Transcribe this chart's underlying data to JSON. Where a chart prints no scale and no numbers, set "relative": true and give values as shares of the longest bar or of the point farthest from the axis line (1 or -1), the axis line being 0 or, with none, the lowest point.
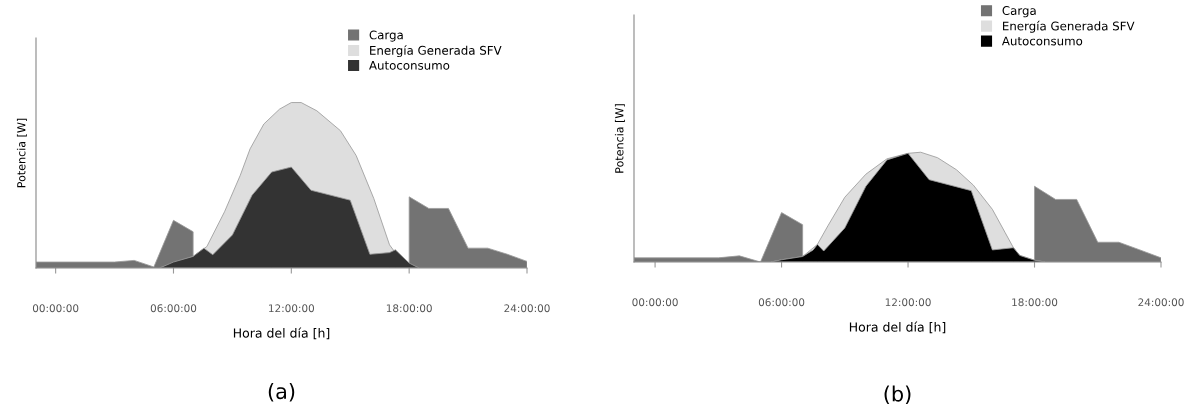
{
  "chart_data": [
    {
      "type": "area",
      "relative": true,
      "xlabel": "Hora del día [h]",
      "ylabel": "Potencia [W]",
      "annotations": [
        "(a)"
      ],
      "legend": "top right",
      "grid": false,
      "tick_labels": "x",
      "xlim": [
        -1,
        24
      ],
      "xticks": [
        {
          "value": 0,
          "label": "00:00:00"
        },
        {
          "value": 6,
          "label": "06:00:00"
        },
        {
          "value": 12,
          "label": "12:00:00"
        },
        {
          "value": 18,
          "label": "18:00:00"
        },
        {
          "value": 24,
          "label": "24:00:00"
        }
      ],
      "series": [
        {
          "name": "Carga",
          "color": "#737373",
          "x": [
            -1,
            3,
            4,
            5,
            6,
            7,
            8,
            9,
            10,
            11,
            12,
            13,
            15,
            16,
            17,
            18,
            19,
            20,
            21,
            22,
            23,
            24
          ],
          "values": [
            0.036,
            0.036,
            0.046,
            0.006,
            0.288,
            0.219,
            null,
            null,
            null,
            null,
            null,
            null,
            null,
            null,
            null,
            0.43,
            0.36,
            0.36,
            0.12,
            0.12,
            0.083,
            0.04
          ]
        },
        {
          "name": "Energía Generada SFV",
          "color": "#dedede",
          "x": [
            5.3,
            6,
            7,
            7.7,
            8.6,
            9.4,
            9.9,
            10.6,
            11.4,
            12,
            12.5,
            13.3,
            14.5,
            15.3,
            16.2,
            17,
            17.5,
            18,
            18.5
          ],
          "values": [
            0,
            0.03,
            0.07,
            0.13,
            0.34,
            0.56,
            0.72,
            0.87,
            0.96,
            1.0,
            1.0,
            0.95,
            0.83,
            0.68,
            0.42,
            0.14,
            0.06,
            0.024,
            0
          ]
        },
        {
          "name": "Autoconsumo",
          "color": "#333333",
          "x": [
            5.3,
            6,
            7,
            7.55,
            8,
            9,
            10,
            11,
            12,
            13,
            15,
            16,
            17,
            17.3,
            18,
            18.5
          ],
          "values": [
            0,
            0.036,
            0.07,
            0.12,
            0.08,
            0.2,
            0.44,
            0.58,
            0.61,
            0.47,
            0.41,
            0.083,
            0.093,
            0.11,
            0.03,
            0
          ]
        }
      ]
    },
    {
      "type": "area",
      "relative": true,
      "xlabel": "Hora del día [h]",
      "ylabel": "Potencia [W]",
      "annotations": [
        "(b)"
      ],
      "legend": "top right",
      "grid": false,
      "tick_labels": "x",
      "xlim": [
        -1,
        24
      ],
      "xticks": [
        {
          "value": 0,
          "label": "00:00:00"
        },
        {
          "value": 6,
          "label": "06:00:00"
        },
        {
          "value": 12,
          "label": "12:00:00"
        },
        {
          "value": 18,
          "label": "18:00:00"
        },
        {
          "value": 24,
          "label": "24:00:00"
        }
      ],
      "series": [
        {
          "name": "Carga",
          "color": "#737373",
          "x": [
            -1,
            3,
            4,
            5,
            6,
            7,
            8,
            9,
            10,
            11,
            12,
            13,
            15,
            16,
            17,
            18,
            19,
            20,
            21,
            22,
            23,
            24
          ],
          "values": [
            0.038,
            0.038,
            0.056,
            0,
            0.45,
            0.34,
            null,
            null,
            null,
            null,
            null,
            null,
            null,
            null,
            null,
            0.69,
            0.57,
            0.57,
            0.18,
            0.18,
            0.11,
            0.038
          ]
        },
        {
          "name": "Energía Generada SFV",
          "color": "#dedede",
          "x": [
            5.5,
            6,
            7,
            7.7,
            8.2,
            9,
            10,
            11,
            12,
            12.6,
            13.4,
            14.3,
            15.1,
            16,
            16.6,
            17,
            17.3,
            18,
            18.5
          ],
          "values": [
            0,
            0.02,
            0.05,
            0.16,
            0.33,
            0.59,
            0.8,
            0.94,
            0.99,
            1.0,
            0.95,
            0.84,
            0.7,
            0.48,
            0.27,
            0.13,
            0.06,
            0.016,
            0
          ]
        },
        {
          "name": "Autoconsumo",
          "color": "#000000",
          "x": [
            5.5,
            6,
            7,
            7.5,
            7.7,
            8,
            9,
            10,
            11,
            12,
            13,
            15,
            16,
            17,
            17.3,
            18,
            18.5
          ],
          "values": [
            0,
            0.02,
            0.05,
            0.11,
            0.16,
            0.1,
            0.31,
            0.69,
            0.93,
            0.99,
            0.75,
            0.65,
            0.11,
            0.13,
            0.06,
            0.016,
            0
          ]
        }
      ]
    }
  ]
}
